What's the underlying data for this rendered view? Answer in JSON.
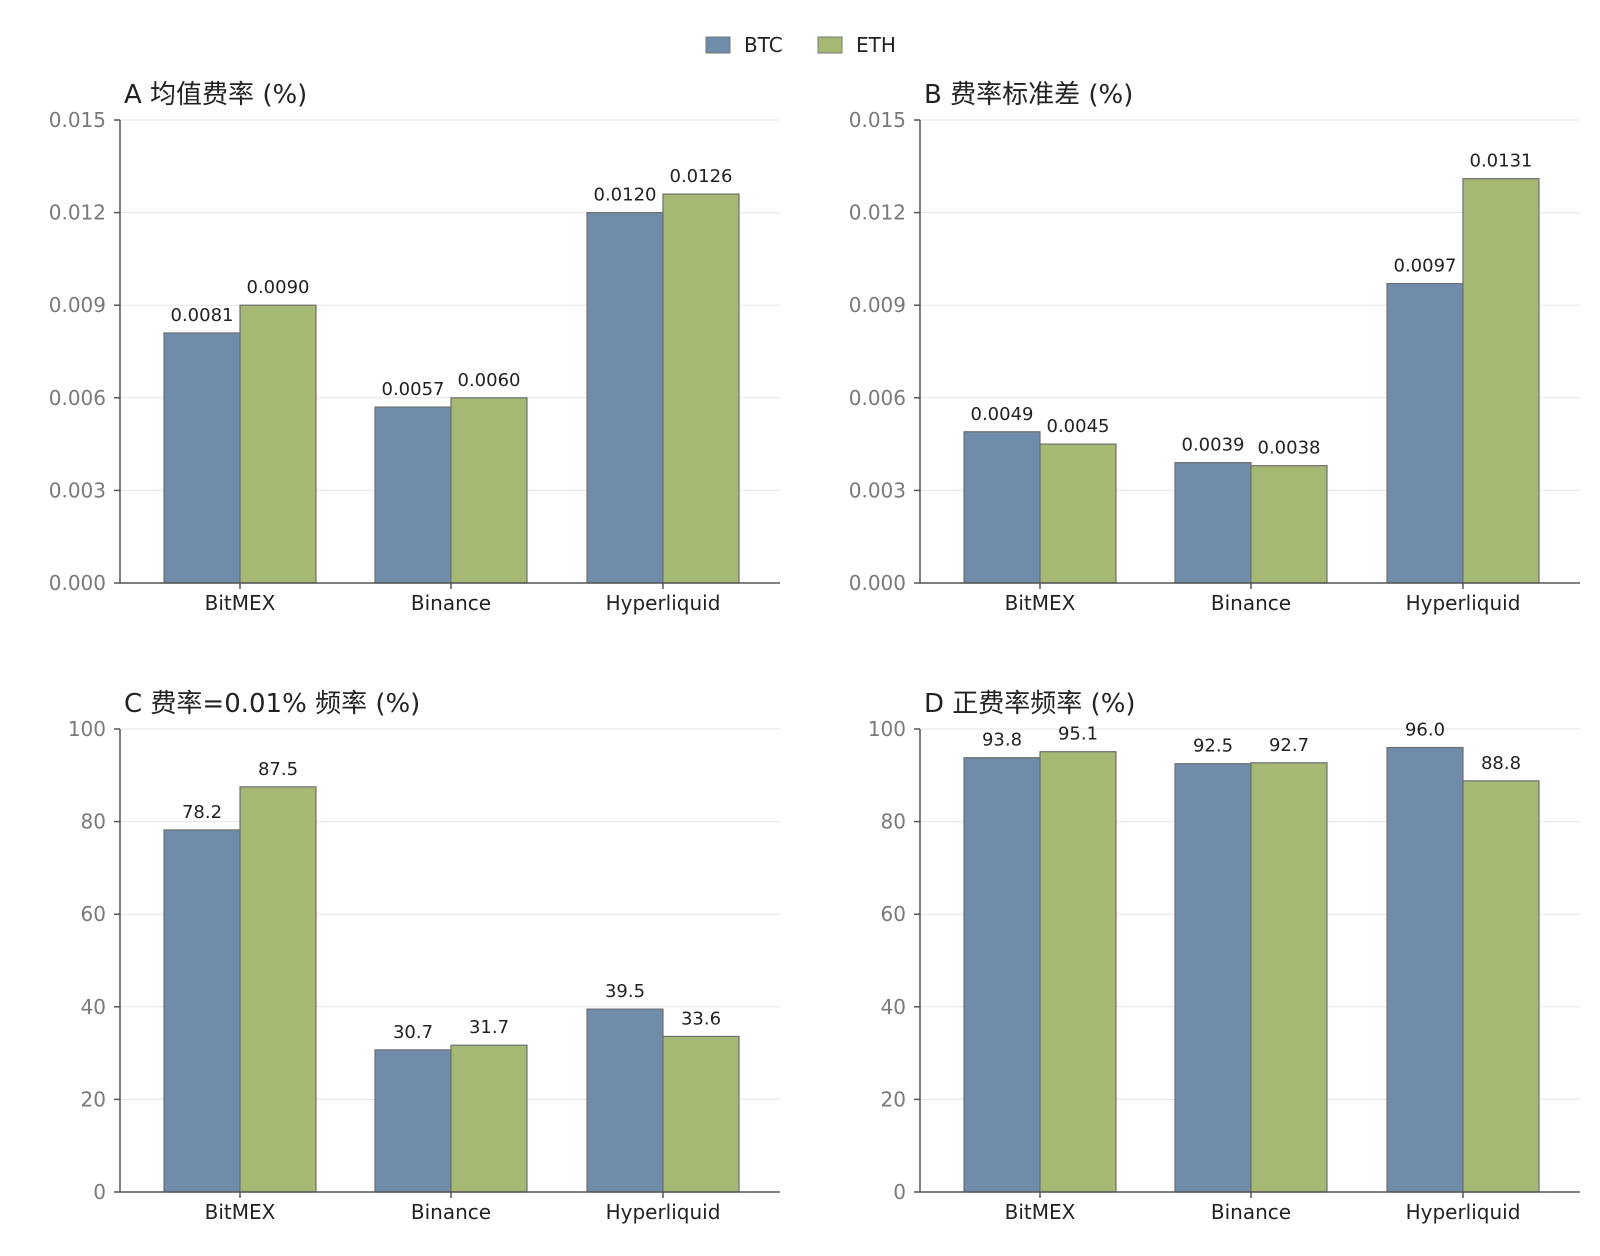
{
  "legend": {
    "position": "top-center",
    "entries": [
      {
        "name": "BTC",
        "color": "#6f8caa"
      },
      {
        "name": "ETH",
        "color": "#a5b874"
      }
    ]
  },
  "chart_data": [
    {
      "type": "bar",
      "title": "A  均值费率 (%)",
      "categories": [
        "BitMEX",
        "Binance",
        "Hyperliquid"
      ],
      "series": [
        {
          "name": "BTC",
          "values": [
            0.0081,
            0.0057,
            0.012
          ],
          "labels": [
            "0.0081",
            "0.0057",
            "0.0120"
          ]
        },
        {
          "name": "ETH",
          "values": [
            0.009,
            0.006,
            0.0126
          ],
          "labels": [
            "0.0090",
            "0.0060",
            "0.0126"
          ]
        }
      ],
      "ylim": [
        0,
        0.015
      ],
      "yticks": [
        0,
        0.003,
        0.006,
        0.009,
        0.012,
        0.015
      ],
      "ytick_labels": [
        "0.000",
        "0.003",
        "0.006",
        "0.009",
        "0.012",
        "0.015"
      ],
      "grid": true
    },
    {
      "type": "bar",
      "title": "B  费率标准差 (%)",
      "categories": [
        "BitMEX",
        "Binance",
        "Hyperliquid"
      ],
      "series": [
        {
          "name": "BTC",
          "values": [
            0.0049,
            0.0039,
            0.0097
          ],
          "labels": [
            "0.0049",
            "0.0039",
            "0.0097"
          ]
        },
        {
          "name": "ETH",
          "values": [
            0.0045,
            0.0038,
            0.0131
          ],
          "labels": [
            "0.0045",
            "0.0038",
            "0.0131"
          ]
        }
      ],
      "ylim": [
        0,
        0.015
      ],
      "yticks": [
        0,
        0.003,
        0.006,
        0.009,
        0.012,
        0.015
      ],
      "ytick_labels": [
        "0.000",
        "0.003",
        "0.006",
        "0.009",
        "0.012",
        "0.015"
      ],
      "grid": true
    },
    {
      "type": "bar",
      "title": "C  费率=0.01% 频率 (%)",
      "categories": [
        "BitMEX",
        "Binance",
        "Hyperliquid"
      ],
      "series": [
        {
          "name": "BTC",
          "values": [
            78.2,
            30.7,
            39.5
          ],
          "labels": [
            "78.2",
            "30.7",
            "39.5"
          ]
        },
        {
          "name": "ETH",
          "values": [
            87.5,
            31.7,
            33.6
          ],
          "labels": [
            "87.5",
            "31.7",
            "33.6"
          ]
        }
      ],
      "ylim": [
        0,
        100
      ],
      "yticks": [
        0,
        20,
        40,
        60,
        80,
        100
      ],
      "ytick_labels": [
        "0",
        "20",
        "40",
        "60",
        "80",
        "100"
      ],
      "grid": true
    },
    {
      "type": "bar",
      "title": "D  正费率频率 (%)",
      "categories": [
        "BitMEX",
        "Binance",
        "Hyperliquid"
      ],
      "series": [
        {
          "name": "BTC",
          "values": [
            93.8,
            92.5,
            96.0
          ],
          "labels": [
            "93.8",
            "92.5",
            "96.0"
          ]
        },
        {
          "name": "ETH",
          "values": [
            95.1,
            92.7,
            88.8
          ],
          "labels": [
            "95.1",
            "92.7",
            "88.8"
          ]
        }
      ],
      "ylim": [
        0,
        100
      ],
      "yticks": [
        0,
        20,
        40,
        60,
        80,
        100
      ],
      "ytick_labels": [
        "0",
        "20",
        "40",
        "60",
        "80",
        "100"
      ],
      "grid": true
    }
  ]
}
